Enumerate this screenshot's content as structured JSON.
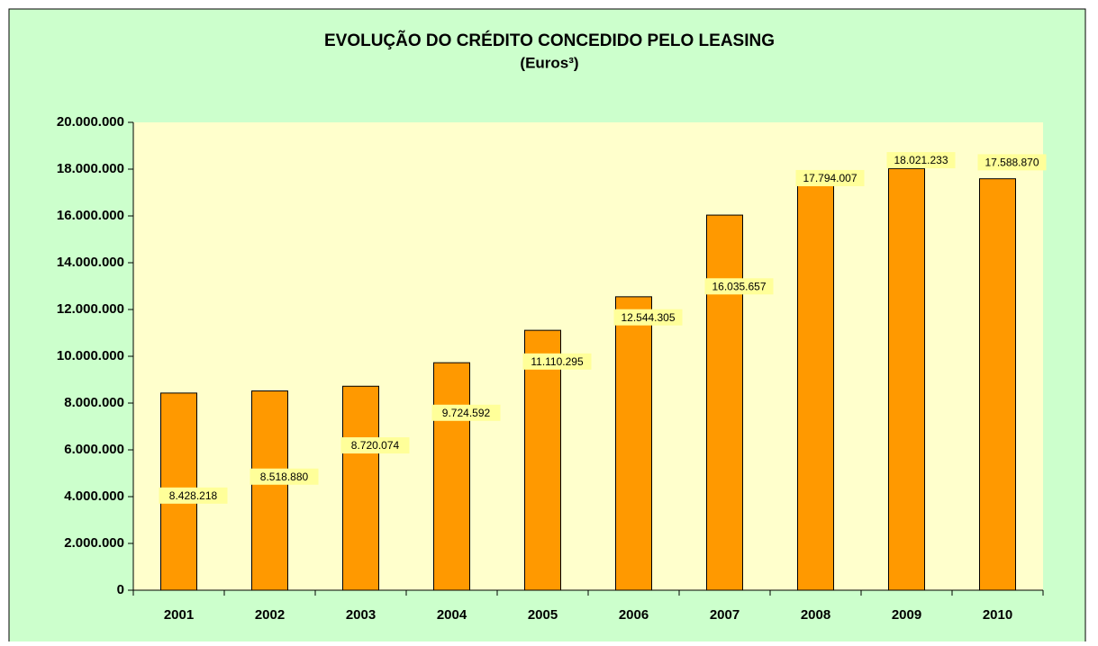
{
  "chart_data": {
    "type": "bar",
    "title": "EVOLUÇÃO DO CRÉDITO CONCEDIDO PELO LEASING",
    "subtitle": "(Euros³)",
    "categories": [
      "2001",
      "2002",
      "2003",
      "2004",
      "2005",
      "2006",
      "2007",
      "2008",
      "2009",
      "2010"
    ],
    "values": [
      8428218,
      8518880,
      8720074,
      9724592,
      11110295,
      12544305,
      16035657,
      17794007,
      18021233,
      17588870
    ],
    "value_labels": [
      "8.428.218",
      "8.518.880",
      "8.720.074",
      "9.724.592",
      "11.110.295",
      "12.544.305",
      "16.035.657",
      "17.794.007",
      "18.021.233",
      "17.588.870"
    ],
    "color": "#ff9900",
    "ylim": [
      0,
      20000000
    ],
    "yticks": [
      0,
      {
        "value": 2000000,
        "label": "2.000.000"
      },
      {
        "value": 4000000,
        "label": "4.000.000"
      },
      {
        "value": 6000000,
        "label": "6.000.000"
      },
      {
        "value": 8000000,
        "label": "8.000.000"
      },
      {
        "value": 10000000,
        "label": "10.000.000"
      },
      {
        "value": 12000000,
        "label": "12.000.000"
      },
      {
        "value": 14000000,
        "label": "14.000.000"
      },
      {
        "value": 16000000,
        "label": "16.000.000"
      },
      {
        "value": 18000000,
        "label": "18.000.000"
      },
      {
        "value": 20000000,
        "label": "20.000.000"
      }
    ]
  }
}
